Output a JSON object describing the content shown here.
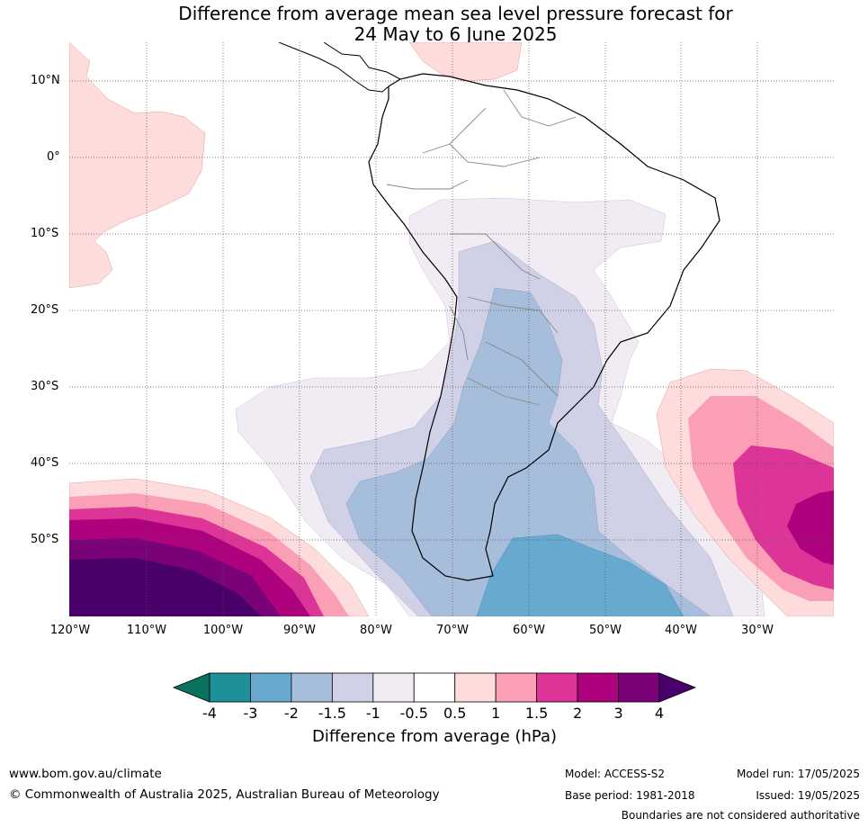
{
  "title_line1": "Difference from average mean sea level pressure forecast for",
  "title_line2": "24 May to 6 June 2025",
  "lat_labels": [
    "10°N",
    "0°",
    "10°S",
    "20°S",
    "30°S",
    "40°S",
    "50°S"
  ],
  "lon_labels": [
    "120°W",
    "110°W",
    "100°W",
    "90°W",
    "80°W",
    "70°W",
    "60°W",
    "50°W",
    "40°W",
    "30°W"
  ],
  "colorbar": {
    "ticks": [
      "-4",
      "-3",
      "-2",
      "-1.5",
      "-1",
      "-0.5",
      "0.5",
      "1",
      "1.5",
      "2",
      "3",
      "4"
    ],
    "colors": [
      "#1e9097",
      "#67a9cf",
      "#a6bddb",
      "#d0d1e6",
      "#f1ecf4",
      "#ffffff",
      "#fedcdc",
      "#fa9fb5",
      "#dd3497",
      "#ae017e",
      "#7a0177"
    ],
    "low_extend_color": "#0a7060",
    "high_extend_color": "#49006a",
    "label": "Difference from average (hPa)"
  },
  "footer": {
    "url": "www.bom.gov.au/climate",
    "copyright": "© Commonwealth of Australia 2025, Australian Bureau of Meteorology",
    "model": "Model: ACCESS-S2",
    "base_period": "Base period: 1981-2018",
    "model_run": "Model run: 17/05/2025",
    "issued": "Issued: 19/05/2025",
    "disclaimer": "Boundaries are not considered authoritative"
  }
}
